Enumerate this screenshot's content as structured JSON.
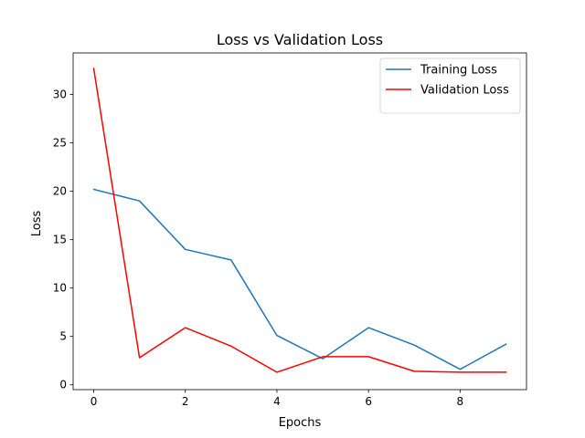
{
  "chart_data": {
    "type": "line",
    "title": "Loss vs Validation Loss",
    "xlabel": "Epochs",
    "ylabel": "Loss",
    "x": [
      0,
      1,
      2,
      3,
      4,
      5,
      6,
      7,
      8,
      9
    ],
    "xlim": [
      -0.45,
      9.45
    ],
    "ylim": [
      -0.5,
      34.3
    ],
    "xticks": [
      0,
      2,
      4,
      6,
      8
    ],
    "yticks": [
      0,
      5,
      10,
      15,
      20,
      25,
      30
    ],
    "grid": false,
    "legend_position": "top-right",
    "series": [
      {
        "name": "Training Loss",
        "color": "#1f77b4",
        "values": [
          20.2,
          19.0,
          14.0,
          12.9,
          5.1,
          2.7,
          5.9,
          4.1,
          1.6,
          4.2
        ]
      },
      {
        "name": "Validation Loss",
        "color": "#ff0000",
        "values": [
          32.7,
          2.8,
          5.9,
          4.0,
          1.3,
          2.9,
          2.9,
          1.4,
          1.3,
          1.3
        ]
      }
    ]
  }
}
